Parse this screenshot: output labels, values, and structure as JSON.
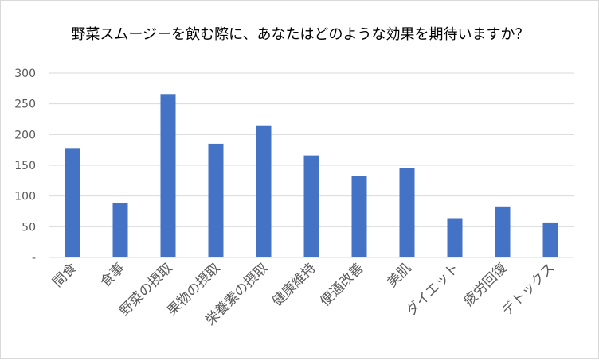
{
  "chart_data": {
    "type": "bar",
    "title": "野菜スムージーを飲む際に、あなたはどのような効果を期待いますか？",
    "xlabel": "",
    "ylabel": "",
    "categories": [
      "間食",
      "食事",
      "野菜の摂取",
      "果物の摂取",
      "栄養素の摂取",
      "健康維持",
      "便通改善",
      "美肌",
      "ダイエット",
      "疲労回復",
      "デトックス"
    ],
    "values": [
      178,
      89,
      266,
      185,
      215,
      166,
      133,
      145,
      64,
      83,
      57
    ],
    "ylim": [
      0,
      300
    ],
    "yticks": [
      0,
      50,
      100,
      150,
      200,
      250,
      300
    ],
    "ytick_labels": [
      "-",
      "50",
      "100",
      "150",
      "200",
      "250",
      "300"
    ],
    "grid": true,
    "legend": "none",
    "colors": {
      "bar": "#4472C4",
      "grid": "#d9d9d9",
      "axis": "#d9d9d9",
      "text": "#595959"
    }
  }
}
